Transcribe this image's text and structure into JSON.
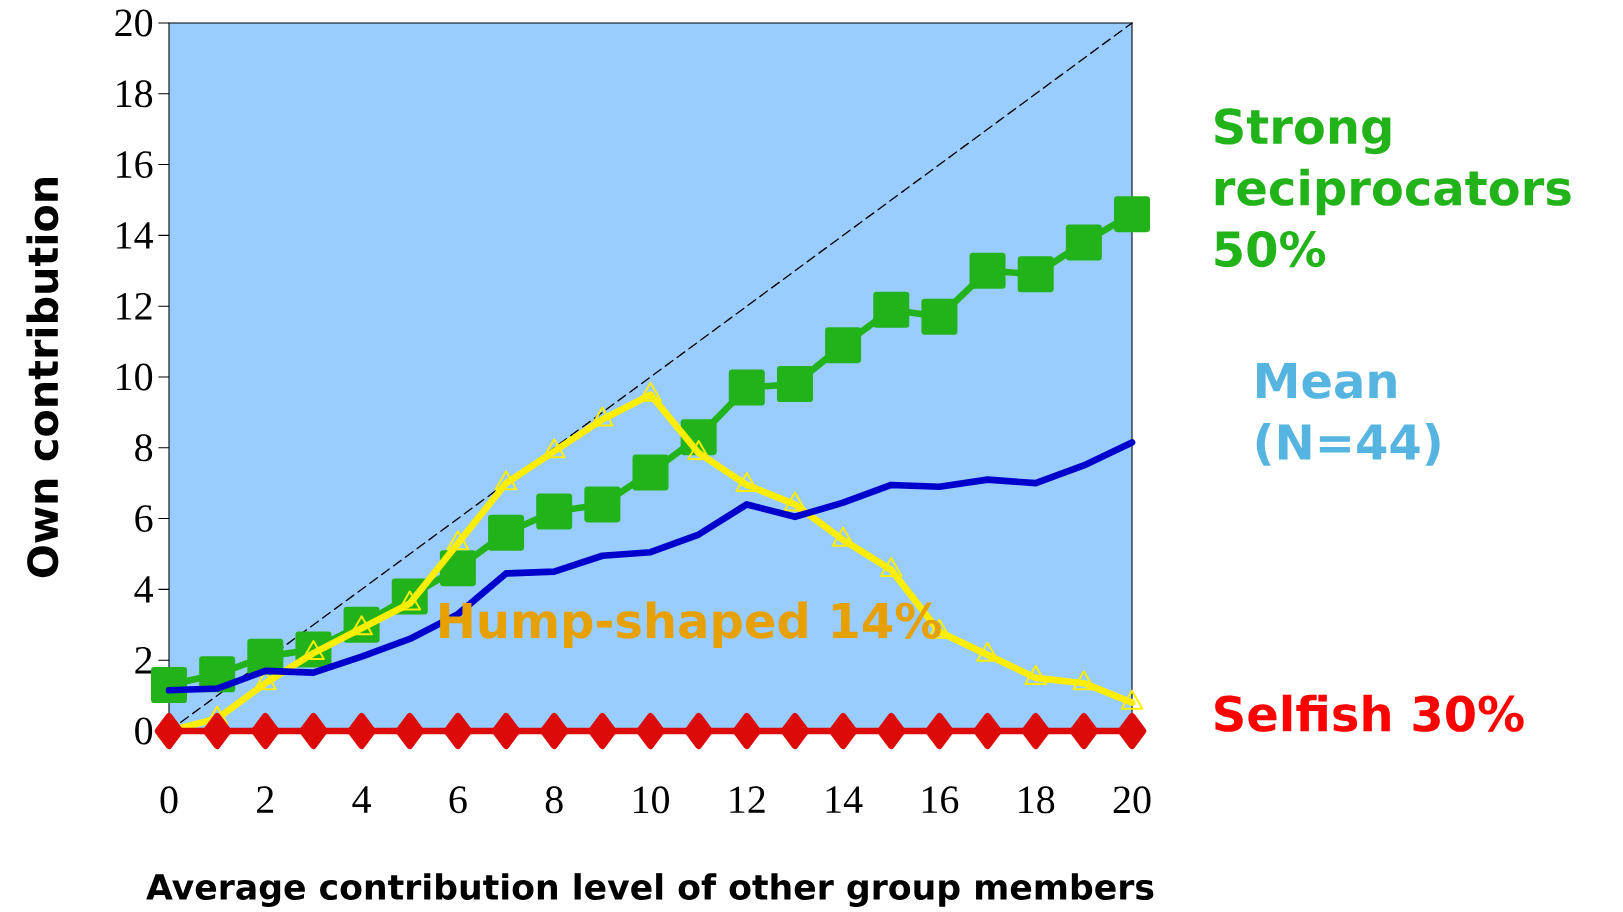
{
  "chart_data": {
    "type": "line",
    "xlabel": "Average contribution level of other group members",
    "ylabel": "Own contribution",
    "x": [
      0,
      1,
      2,
      3,
      4,
      5,
      6,
      7,
      8,
      9,
      10,
      11,
      12,
      13,
      14,
      15,
      16,
      17,
      18,
      19,
      20
    ],
    "xlim": [
      0,
      20
    ],
    "ylim": [
      0,
      20
    ],
    "xticks": [
      0,
      2,
      4,
      6,
      8,
      10,
      12,
      14,
      16,
      18,
      20
    ],
    "yticks": [
      0,
      2,
      4,
      6,
      8,
      10,
      12,
      14,
      16,
      18,
      20
    ],
    "series": [
      {
        "name": "Strong reciprocators 50%",
        "color": "#22b31a",
        "marker": "square",
        "values": [
          1.3,
          1.6,
          2.1,
          2.3,
          3.0,
          3.8,
          4.6,
          5.6,
          6.2,
          6.4,
          7.3,
          8.3,
          9.7,
          9.8,
          10.9,
          11.9,
          11.7,
          13.0,
          12.9,
          13.8,
          14.6
        ]
      },
      {
        "name": "Hump-shaped 14%",
        "color": "#ffee00",
        "marker": "triangle",
        "values": [
          0,
          0.35,
          1.35,
          2.2,
          2.9,
          3.6,
          5.3,
          7.0,
          7.9,
          8.8,
          9.5,
          7.85,
          6.95,
          6.4,
          5.4,
          4.55,
          2.8,
          2.15,
          1.5,
          1.35,
          0.8
        ]
      },
      {
        "name": "Mean (N=44)",
        "color": "#0000cc",
        "marker": "none",
        "values": [
          1.15,
          1.2,
          1.7,
          1.65,
          2.1,
          2.6,
          3.3,
          4.45,
          4.5,
          4.95,
          5.05,
          5.55,
          6.4,
          6.05,
          6.45,
          6.95,
          6.9,
          7.1,
          7.0,
          7.5,
          8.15
        ]
      },
      {
        "name": "Selfish 30%",
        "color": "#dd0a0a",
        "marker": "diamond",
        "values": [
          0,
          0,
          0,
          0,
          0,
          0,
          0,
          0,
          0,
          0,
          0,
          0,
          0,
          0,
          0,
          0,
          0,
          0,
          0,
          0,
          0
        ]
      },
      {
        "color": "#000000",
        "marker": "none",
        "line_style": "dashed",
        "x": [
          0,
          20
        ],
        "values": [
          0,
          20
        ]
      }
    ]
  }
}
